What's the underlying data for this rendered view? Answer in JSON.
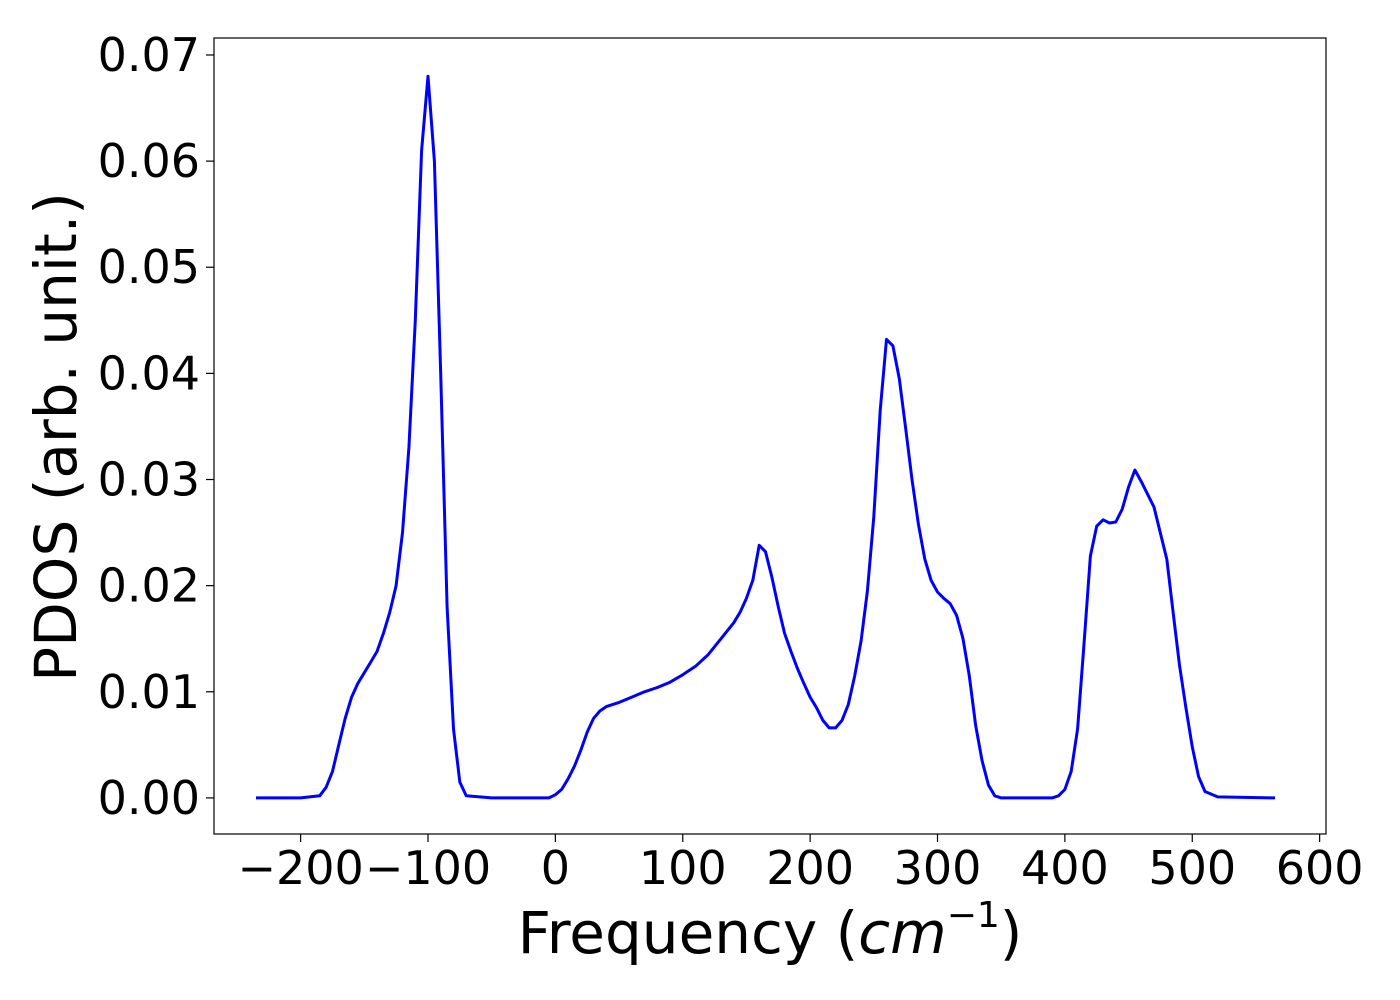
{
  "chart_data": {
    "type": "line",
    "title": "",
    "xlabel": "Frequency (",
    "xlabel_math": "cm",
    "xlabel_sup": "−1",
    "xlabel_close": ")",
    "ylabel": "PDOS (arb. unit.)",
    "xlim": [
      -268,
      605
    ],
    "ylim": [
      -0.0034,
      0.0716
    ],
    "xticks": [
      -200,
      -100,
      0,
      100,
      200,
      300,
      400,
      500,
      600
    ],
    "xtick_labels": [
      "−200",
      "−100",
      "0",
      "100",
      "200",
      "300",
      "400",
      "500",
      "600"
    ],
    "yticks": [
      0.0,
      0.01,
      0.02,
      0.03,
      0.04,
      0.05,
      0.06,
      0.07
    ],
    "ytick_labels": [
      "0.00",
      "0.01",
      "0.02",
      "0.03",
      "0.04",
      "0.05",
      "0.06",
      "0.07"
    ],
    "grid": false,
    "series": [
      {
        "color": "#0000ff",
        "x": [
          -235,
          -200,
          -185,
          -180,
          -175,
          -170,
          -165,
          -160,
          -155,
          -150,
          -145,
          -140,
          -135,
          -130,
          -125,
          -120,
          -115,
          -110,
          -105,
          -100,
          -95,
          -90,
          -85,
          -80,
          -75,
          -70,
          -50,
          -20,
          -5,
          0,
          5,
          10,
          15,
          20,
          25,
          30,
          35,
          40,
          50,
          60,
          70,
          80,
          90,
          100,
          110,
          120,
          130,
          140,
          145,
          150,
          155,
          160,
          165,
          170,
          175,
          180,
          185,
          190,
          195,
          200,
          205,
          210,
          215,
          220,
          225,
          230,
          235,
          240,
          245,
          250,
          255,
          260,
          265,
          270,
          275,
          280,
          285,
          290,
          295,
          300,
          305,
          310,
          315,
          320,
          325,
          330,
          335,
          340,
          345,
          350,
          380,
          390,
          395,
          400,
          405,
          410,
          415,
          420,
          425,
          430,
          435,
          440,
          445,
          450,
          455,
          460,
          470,
          480,
          485,
          490,
          495,
          500,
          505,
          510,
          520,
          565
        ],
        "y": [
          0.0,
          0.0,
          0.0002,
          0.001,
          0.0025,
          0.005,
          0.0075,
          0.0095,
          0.0108,
          0.0118,
          0.0128,
          0.0138,
          0.0155,
          0.0175,
          0.02,
          0.025,
          0.033,
          0.045,
          0.061,
          0.068,
          0.06,
          0.04,
          0.018,
          0.0065,
          0.0015,
          0.0002,
          0.0,
          0.0,
          0.0,
          0.0003,
          0.0008,
          0.0018,
          0.003,
          0.0045,
          0.0062,
          0.0075,
          0.0082,
          0.0086,
          0.009,
          0.0095,
          0.01,
          0.0104,
          0.0109,
          0.0116,
          0.0124,
          0.0135,
          0.015,
          0.0165,
          0.0175,
          0.0188,
          0.0205,
          0.0238,
          0.0232,
          0.0208,
          0.018,
          0.0155,
          0.0138,
          0.0122,
          0.0108,
          0.0095,
          0.0085,
          0.0073,
          0.0066,
          0.0066,
          0.0073,
          0.0088,
          0.0115,
          0.0148,
          0.0195,
          0.0265,
          0.0365,
          0.0432,
          0.0426,
          0.0395,
          0.0348,
          0.03,
          0.0258,
          0.0225,
          0.0205,
          0.0194,
          0.0188,
          0.0183,
          0.0172,
          0.015,
          0.0115,
          0.0068,
          0.0035,
          0.0012,
          0.0002,
          0.0,
          0.0,
          0.0,
          0.0002,
          0.0008,
          0.0025,
          0.0065,
          0.0145,
          0.0228,
          0.0256,
          0.0262,
          0.0259,
          0.026,
          0.0272,
          0.0293,
          0.0309,
          0.0298,
          0.0274,
          0.0225,
          0.0175,
          0.0125,
          0.0085,
          0.0048,
          0.002,
          0.0006,
          0.0001,
          0.0
        ]
      }
    ]
  }
}
